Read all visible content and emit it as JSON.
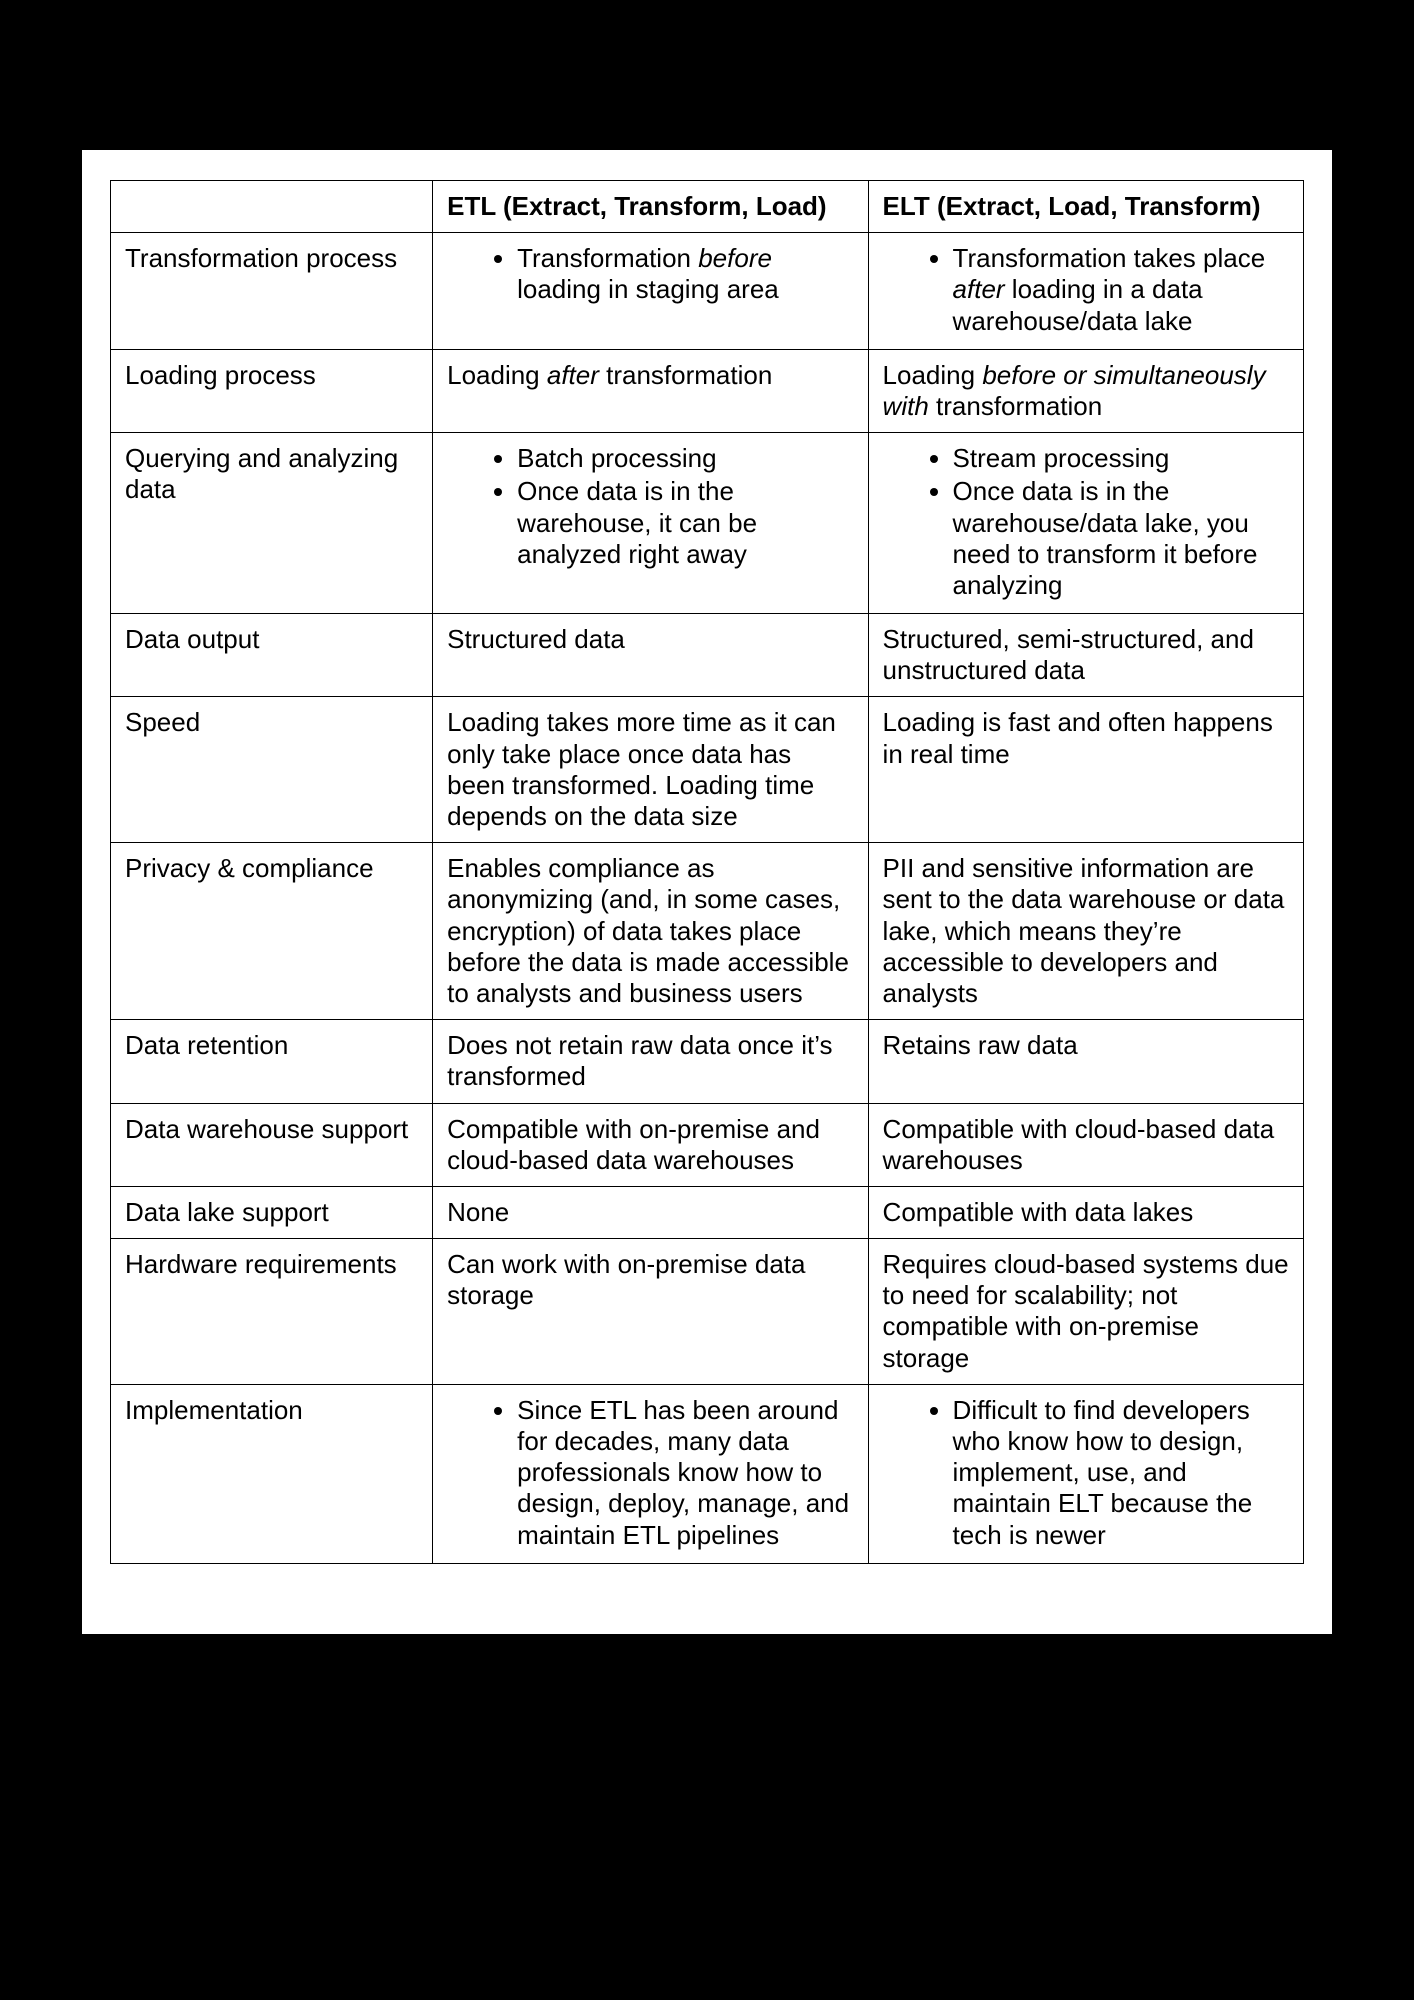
{
  "colors": {
    "page_bg": "#000000",
    "canvas_bg": "#ffffff",
    "border": "#000000",
    "text": "#000000"
  },
  "font_sizes": {
    "cell": 26,
    "header": 26
  },
  "columns": {
    "label": "",
    "etl": "ETL (Extract, Transform, Load)",
    "elt": "ELT (Extract, Load, Transform)"
  },
  "rows": [
    {
      "label": "Transformation process",
      "etl": {
        "type": "bullets",
        "items": [
          {
            "pre": "Transformation ",
            "em": "before",
            "post": " loading in staging area"
          }
        ]
      },
      "elt": {
        "type": "bullets",
        "items": [
          {
            "pre": "Transformation takes place ",
            "em": "after",
            "post": " loading in a data warehouse/data lake"
          }
        ]
      }
    },
    {
      "label": "Loading process",
      "etl": {
        "type": "text",
        "pre": "Loading ",
        "em": "after",
        "post": " transformation"
      },
      "elt": {
        "type": "text",
        "pre": "Loading ",
        "em": "before or simultaneously with",
        "post": " transformation"
      }
    },
    {
      "label": "Querying and analyzing data",
      "etl": {
        "type": "bullets",
        "items": [
          {
            "pre": "Batch processing",
            "em": "",
            "post": ""
          },
          {
            "pre": "Once data is in the warehouse, it can be analyzed right away",
            "em": "",
            "post": ""
          }
        ]
      },
      "elt": {
        "type": "bullets",
        "items": [
          {
            "pre": "Stream processing",
            "em": "",
            "post": ""
          },
          {
            "pre": "Once data is in the warehouse/data lake, you need to transform it before analyzing",
            "em": "",
            "post": ""
          }
        ]
      }
    },
    {
      "label": "Data output",
      "etl": {
        "type": "text",
        "pre": "Structured data",
        "em": "",
        "post": ""
      },
      "elt": {
        "type": "text",
        "pre": "Structured, semi-structured, and unstructured data",
        "em": "",
        "post": ""
      }
    },
    {
      "label": "Speed",
      "etl": {
        "type": "text",
        "pre": "Loading takes more time as it can only take place once data has been transformed. Loading time depends on the data size",
        "em": "",
        "post": ""
      },
      "elt": {
        "type": "text",
        "pre": "Loading is fast and often happens in real time",
        "em": "",
        "post": ""
      }
    },
    {
      "label": "Privacy & compliance",
      "etl": {
        "type": "text",
        "pre": "Enables compliance as anonymizing (and, in some cases, encryption) of data takes place before the data is made accessible to analysts and business users",
        "em": "",
        "post": ""
      },
      "elt": {
        "type": "text",
        "pre": "PII and sensitive information are sent to the data warehouse or data lake, which means they’re accessible to developers and analysts",
        "em": "",
        "post": ""
      }
    },
    {
      "label": "Data retention",
      "etl": {
        "type": "text",
        "pre": "Does not retain raw data once it’s transformed",
        "em": "",
        "post": ""
      },
      "elt": {
        "type": "text",
        "pre": "Retains raw data",
        "em": "",
        "post": ""
      }
    },
    {
      "label": "Data warehouse support",
      "etl": {
        "type": "text",
        "pre": "Compatible with on-premise and cloud-based data warehouses",
        "em": "",
        "post": ""
      },
      "elt": {
        "type": "text",
        "pre": "Compatible with cloud-based data warehouses",
        "em": "",
        "post": ""
      }
    },
    {
      "label": "Data lake support",
      "etl": {
        "type": "text",
        "pre": "None",
        "em": "",
        "post": ""
      },
      "elt": {
        "type": "text",
        "pre": "Compatible with data lakes",
        "em": "",
        "post": ""
      }
    },
    {
      "label": "Hardware requirements",
      "etl": {
        "type": "text",
        "pre": "Can work with on-premise data storage",
        "em": "",
        "post": ""
      },
      "elt": {
        "type": "text",
        "pre": "Requires cloud-based systems due to need for scalability; not compatible with on-premise storage",
        "em": "",
        "post": ""
      }
    },
    {
      "label": "Implementation",
      "etl": {
        "type": "bullets",
        "items": [
          {
            "pre": "Since ETL has been around for decades, many data professionals know how to design, deploy, manage, and maintain ETL pipelines",
            "em": "",
            "post": ""
          }
        ]
      },
      "elt": {
        "type": "bullets",
        "items": [
          {
            "pre": "Difficult to find developers who know how to design, implement, use, and maintain ELT because the tech is newer",
            "em": "",
            "post": ""
          }
        ]
      }
    }
  ]
}
